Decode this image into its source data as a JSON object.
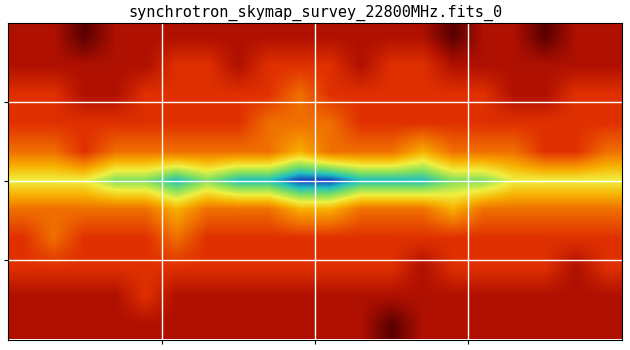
{
  "chart_data": {
    "type": "heatmap",
    "title": "synchrotron_skymap_survey_22800MHz.fits_0",
    "xlim": [
      180,
      -180
    ],
    "ylim": [
      -90,
      90
    ],
    "xticks": [
      90,
      0,
      -90
    ],
    "yticks": [
      -45,
      0,
      45
    ],
    "grid": true,
    "tick_labels": false,
    "color_range": [
      1,
      9
    ],
    "cells": [
      [
        2,
        2,
        1,
        2,
        2,
        2,
        2,
        2,
        2,
        2,
        2,
        2,
        2,
        2,
        1,
        2,
        2,
        1,
        2,
        2
      ],
      [
        2,
        2,
        2,
        2,
        2,
        3,
        3,
        2,
        3,
        3,
        3,
        2,
        3,
        3,
        2,
        2,
        2,
        2,
        2,
        2
      ],
      [
        3,
        3,
        2,
        2,
        3,
        3,
        3,
        3,
        3,
        4,
        3,
        3,
        3,
        3,
        3,
        3,
        2,
        2,
        3,
        3
      ],
      [
        3,
        3,
        3,
        3,
        3,
        3,
        3,
        3,
        4,
        4,
        4,
        3,
        3,
        3,
        3,
        3,
        3,
        3,
        3,
        3
      ],
      [
        4,
        4,
        3,
        4,
        4,
        4,
        4,
        4,
        4,
        5,
        4,
        4,
        4,
        5,
        4,
        4,
        4,
        3,
        3,
        4
      ],
      [
        6,
        6,
        6,
        7,
        7,
        8,
        7,
        8,
        8,
        9,
        9,
        8,
        8,
        8,
        7,
        7,
        6,
        6,
        6,
        6
      ],
      [
        4,
        4,
        4,
        4,
        4,
        5,
        4,
        4,
        4,
        5,
        5,
        4,
        4,
        4,
        5,
        4,
        4,
        4,
        4,
        4
      ],
      [
        3,
        4,
        3,
        3,
        3,
        4,
        3,
        3,
        3,
        3,
        3,
        3,
        3,
        3,
        3,
        3,
        3,
        3,
        3,
        3
      ],
      [
        3,
        3,
        3,
        3,
        3,
        3,
        3,
        3,
        3,
        3,
        3,
        3,
        3,
        2,
        3,
        3,
        3,
        3,
        2,
        3
      ],
      [
        2,
        2,
        2,
        2,
        3,
        2,
        2,
        2,
        2,
        2,
        2,
        2,
        2,
        2,
        2,
        2,
        2,
        2,
        2,
        2
      ],
      [
        2,
        2,
        2,
        2,
        2,
        2,
        2,
        2,
        2,
        2,
        2,
        2,
        1,
        2,
        2,
        2,
        2,
        2,
        2,
        2
      ]
    ]
  }
}
